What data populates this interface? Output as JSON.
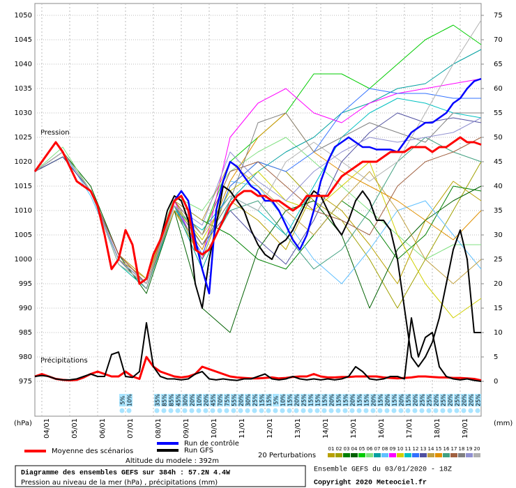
{
  "chart_data": {
    "type": "line",
    "title": "Diagramme des ensembles GEFS sur 384h : 57.2N 4.4W",
    "subtitle": "Pression au niveau de la mer (hPa) , précipitations (mm)",
    "run_label": "Ensemble GEFS du 03/01/2020 - 18Z",
    "copyright": "Copyright 2020 Meteociel.fr",
    "altitude": "Altitude du modele : 392m",
    "pressure_label": "Pression",
    "precip_label": "Précipitations",
    "ylabel": "(hPa)",
    "y2label": "(mm)",
    "perturbations_label": "20 Perturbations",
    "grid": true,
    "xlim": [
      0,
      384
    ],
    "xticks": [
      {
        "value": 6,
        "label": "04/01"
      },
      {
        "value": 30,
        "label": "05/01"
      },
      {
        "value": 54,
        "label": "06/01"
      },
      {
        "value": 78,
        "label": "07/01"
      },
      {
        "value": 102,
        "label": "08/01"
      },
      {
        "value": 126,
        "label": "09/01"
      },
      {
        "value": 150,
        "label": "10/01"
      },
      {
        "value": 174,
        "label": "11/01"
      },
      {
        "value": 198,
        "label": "12/01"
      },
      {
        "value": 222,
        "label": "13/01"
      },
      {
        "value": 246,
        "label": "14/01"
      },
      {
        "value": 270,
        "label": "15/01"
      },
      {
        "value": 294,
        "label": "16/01"
      },
      {
        "value": 318,
        "label": "17/01"
      },
      {
        "value": 342,
        "label": "18/01"
      },
      {
        "value": 366,
        "label": "19/01"
      }
    ],
    "ylim": [
      975,
      1050
    ],
    "yticks": [
      975,
      980,
      985,
      990,
      995,
      1000,
      1005,
      1010,
      1015,
      1020,
      1025,
      1030,
      1035,
      1040,
      1045,
      1050
    ],
    "y2lim": [
      0,
      75
    ],
    "y2ticks": [
      0,
      5,
      10,
      15,
      20,
      25,
      30,
      35,
      40,
      45,
      50,
      55,
      60,
      65,
      70,
      75
    ],
    "x": [
      0,
      6,
      12,
      18,
      24,
      30,
      36,
      42,
      48,
      54,
      60,
      66,
      72,
      78,
      84,
      90,
      96,
      102,
      108,
      114,
      120,
      126,
      132,
      138,
      144,
      150,
      156,
      162,
      168,
      174,
      180,
      186,
      192,
      198,
      204,
      210,
      216,
      222,
      228,
      234,
      240,
      246,
      252,
      258,
      264,
      270,
      276,
      282,
      288,
      294,
      300,
      306,
      312,
      318,
      324,
      330,
      336,
      342,
      348,
      354,
      360,
      366,
      372,
      378,
      384
    ],
    "series": [
      {
        "name": "Moyenne des scénarios",
        "color": "#ff0000",
        "values": [
          1018,
          1020,
          1022,
          1024,
          1022,
          1019,
          1016,
          1015,
          1014,
          1011,
          1005,
          998,
          1000,
          1006,
          1003,
          995,
          996,
          1001,
          1004,
          1008,
          1012,
          1013,
          1010,
          1002,
          1001,
          1002,
          1005,
          1008,
          1011,
          1013,
          1014,
          1014,
          1013,
          1013,
          1012,
          1012,
          1011,
          1010,
          1011,
          1013,
          1013,
          1013,
          1013,
          1015,
          1017,
          1018,
          1019,
          1020,
          1020,
          1020,
          1021,
          1022,
          1022,
          1022,
          1023,
          1023,
          1023,
          1022,
          1023,
          1023,
          1024,
          1025,
          1024,
          1024,
          1023.5
        ]
      },
      {
        "name": "Run de contrôle",
        "color": "#0000ff",
        "values": [
          1018,
          1020,
          1022,
          1024,
          1022,
          1019,
          1016,
          1015,
          1014,
          1011,
          1005,
          998,
          1000,
          1006,
          1003,
          995,
          996,
          1001,
          1004,
          1008,
          1012,
          1014,
          1012,
          1004,
          998,
          993,
          1010,
          1016,
          1020,
          1019,
          1017,
          1015,
          1014,
          1012,
          1012,
          1010,
          1007,
          1004,
          1002,
          1005,
          1010,
          1016,
          1020,
          1023,
          1024,
          1025,
          1024,
          1023,
          1023,
          1022.5,
          1022.5,
          1022.5,
          1022,
          1024,
          1026,
          1027,
          1028,
          1028,
          1029,
          1030,
          1032,
          1033,
          1035,
          1036.5,
          1037
        ]
      },
      {
        "name": "Run GFS",
        "color": "#000000",
        "values": [
          1018,
          1020,
          1022,
          1024,
          1022,
          1019,
          1016,
          1015,
          1014,
          1011,
          1005,
          998,
          1000,
          1006,
          1003,
          995,
          996,
          1001,
          1004,
          1010,
          1013,
          1012,
          1008,
          995,
          990,
          1000,
          1007,
          1015,
          1014,
          1012,
          1010,
          1006,
          1003,
          1001,
          1000,
          1003,
          1004,
          1006,
          1009,
          1012,
          1014,
          1013,
          1010,
          1007,
          1005,
          1008,
          1012,
          1014,
          1012,
          1008,
          1008,
          1006,
          1000,
          990,
          980,
          978,
          980,
          983,
          988,
          995,
          1002,
          1006,
          1000,
          985,
          985
        ]
      }
    ],
    "precip_series": [
      {
        "color": "#ff0000",
        "axis": "y2",
        "values": [
          1,
          1.5,
          1,
          0.5,
          0.3,
          0.2,
          0.3,
          0.8,
          1.5,
          2,
          1.5,
          1,
          1,
          2,
          1,
          0.5,
          5,
          3,
          2,
          1.5,
          1,
          0.8,
          1,
          1.5,
          3,
          2.5,
          2,
          1.5,
          1,
          0.8,
          0.7,
          0.6,
          0.6,
          0.7,
          0.8,
          0.6,
          0.7,
          0.9,
          1,
          1,
          1.5,
          1,
          0.8,
          0.8,
          0.9,
          0.9,
          1,
          1,
          1,
          1,
          0.8,
          0.7,
          0.6,
          0.7,
          0.8,
          1,
          1,
          0.9,
          0.8,
          0.8,
          0.7,
          0.7,
          0.6,
          0.5,
          0.2
        ]
      },
      {
        "color": "#000000",
        "axis": "y2",
        "values": [
          1,
          1.2,
          1,
          0.5,
          0.3,
          0.3,
          0.5,
          1,
          1.5,
          1,
          1,
          5.5,
          6,
          1,
          0.8,
          2,
          12,
          3,
          1,
          0.5,
          0.5,
          0.3,
          0.5,
          1.5,
          2,
          0.5,
          0.3,
          0.5,
          0.3,
          0.2,
          0.5,
          0.5,
          1,
          1.5,
          0.5,
          0.3,
          0.5,
          1,
          0.5,
          0.3,
          0.5,
          0.3,
          0.5,
          0.3,
          0.5,
          1,
          3,
          2,
          0.5,
          0.3,
          0.5,
          1,
          1,
          0.5,
          13,
          5,
          9,
          10,
          3,
          1,
          0.5,
          0.3,
          0.5,
          0.2,
          0
        ]
      }
    ],
    "perturbation_x": [
      0,
      24,
      48,
      72,
      96,
      120,
      144,
      168,
      192,
      216,
      240,
      264,
      288,
      312,
      336,
      360,
      384
    ],
    "perturbations": [
      {
        "name": "01",
        "color": "#b8a000",
        "values": [
          1018,
          1022,
          1014,
          1001,
          996,
          1012,
          1003,
          1012,
          1008,
          1002,
          1014,
          1010,
          1003,
          995,
          1008,
          1016,
          1012
        ]
      },
      {
        "name": "02",
        "color": "#a0a000",
        "values": [
          1018,
          1022,
          1014,
          999,
          994,
          1010,
          1000,
          1015,
          1020,
          1018,
          1012,
          1008,
          1000,
          990,
          1000,
          1010,
          1020
        ]
      },
      {
        "name": "03",
        "color": "#008000",
        "values": [
          1018,
          1021,
          1014,
          1000,
          995,
          1012,
          1008,
          1005,
          1000,
          998,
          1005,
          1012,
          1008,
          1000,
          1005,
          1015,
          1014
        ]
      },
      {
        "name": "04",
        "color": "#006000",
        "values": [
          1018,
          1022,
          1015,
          1001,
          993,
          1010,
          990,
          985,
          1002,
          1010,
          1012,
          1005,
          990,
          1002,
          1008,
          1012,
          1015
        ]
      },
      {
        "name": "05",
        "color": "#00cc00",
        "values": [
          1018,
          1022,
          1014,
          999,
          995,
          1011,
          1005,
          1020,
          1025,
          1030,
          1038,
          1038,
          1035,
          1040,
          1045,
          1048,
          1044
        ]
      },
      {
        "name": "06",
        "color": "#80e080",
        "values": [
          1018,
          1023,
          1014,
          1000,
          996,
          1013,
          1010,
          1018,
          1022,
          1025,
          1020,
          1015,
          1010,
          1005,
          1000,
          1003,
          1003
        ]
      },
      {
        "name": "07",
        "color": "#00a0a0",
        "values": [
          1018,
          1022,
          1014,
          1000,
          994,
          1011,
          998,
          1012,
          1018,
          1022,
          1025,
          1030,
          1032,
          1035,
          1036,
          1040,
          1043
        ]
      },
      {
        "name": "08",
        "color": "#60c0ff",
        "values": [
          1018,
          1022,
          1013,
          1000,
          995,
          1010,
          1002,
          1016,
          1015,
          1008,
          1000,
          995,
          1002,
          1010,
          1012,
          1005,
          998
        ]
      },
      {
        "name": "09",
        "color": "#ff00ff",
        "values": [
          1018,
          1022,
          1014,
          1001,
          995,
          1012,
          1000,
          1025,
          1032,
          1035,
          1030,
          1028,
          1032,
          1034,
          1035,
          1036,
          1037
        ]
      },
      {
        "name": "10",
        "color": "#d0d000",
        "values": [
          1018,
          1022,
          1014,
          1000,
          996,
          1011,
          1004,
          1014,
          1018,
          1012,
          1010,
          1015,
          1020,
          1005,
          995,
          988,
          992
        ]
      },
      {
        "name": "11",
        "color": "#00c0c0",
        "values": [
          1018,
          1022,
          1014,
          999,
          994,
          1010,
          1006,
          1013,
          1010,
          1005,
          1015,
          1025,
          1030,
          1033,
          1032,
          1030,
          1029
        ]
      },
      {
        "name": "12",
        "color": "#3070ff",
        "values": [
          1018,
          1022,
          1014,
          1000,
          995,
          1011,
          1001,
          1015,
          1020,
          1018,
          1022,
          1030,
          1035,
          1034,
          1034,
          1033,
          1033
        ]
      },
      {
        "name": "13",
        "color": "#5050a0",
        "values": [
          1018,
          1021,
          1014,
          1001,
          995,
          1011,
          1003,
          1010,
          1004,
          999,
          1008,
          1020,
          1026,
          1030,
          1028,
          1029,
          1028
        ]
      },
      {
        "name": "14",
        "color": "#c0a040",
        "values": [
          1018,
          1022,
          1014,
          1000,
          996,
          1012,
          1008,
          1020,
          1015,
          1010,
          1005,
          1012,
          1018,
          1010,
          1000,
          995,
          1000
        ]
      },
      {
        "name": "15",
        "color": "#e09000",
        "values": [
          1018,
          1022,
          1014,
          1000,
          995,
          1010,
          1002,
          1016,
          1025,
          1030,
          1022,
          1018,
          1015,
          1012,
          1008,
          1004,
          1010
        ]
      },
      {
        "name": "16",
        "color": "#40a080",
        "values": [
          1018,
          1022,
          1014,
          1000,
          995,
          1011,
          1000,
          1010,
          1012,
          1005,
          998,
          1002,
          1010,
          1020,
          1025,
          1022,
          1020
        ]
      },
      {
        "name": "17",
        "color": "#a06040",
        "values": [
          1018,
          1022,
          1014,
          1001,
          995,
          1012,
          1005,
          1018,
          1020,
          1015,
          1010,
          1008,
          1005,
          1015,
          1020,
          1022,
          1025
        ]
      },
      {
        "name": "18",
        "color": "#808080",
        "values": [
          1018,
          1022,
          1014,
          1000,
          994,
          1011,
          1003,
          1012,
          1028,
          1030,
          1022,
          1025,
          1028,
          1026,
          1024,
          1030,
          1030
        ]
      },
      {
        "name": "19",
        "color": "#9090d0",
        "values": [
          1018,
          1022,
          1014,
          1000,
          995,
          1011,
          1007,
          1022,
          1016,
          1012,
          1018,
          1022,
          1025,
          1024,
          1025,
          1026,
          1029
        ]
      },
      {
        "name": "20",
        "color": "#b0b0b0",
        "values": [
          1018,
          1022,
          1014,
          999,
          995,
          1011,
          1005,
          1013,
          1010,
          1020,
          1024,
          1020,
          1016,
          1020,
          1030,
          1040,
          1049
        ]
      }
    ],
    "probabilities": {
      "values": [
        null,
        null,
        null,
        null,
        null,
        null,
        null,
        null,
        null,
        null,
        null,
        null,
        5,
        10,
        null,
        null,
        null,
        35,
        85,
        85,
        45,
        30,
        20,
        10,
        20,
        45,
        70,
        75,
        55,
        20,
        30,
        25,
        15,
        15,
        5,
        10,
        15,
        20,
        25,
        15,
        15,
        15,
        20,
        15,
        15,
        20,
        15,
        15,
        20,
        15,
        20,
        15,
        20,
        15,
        20,
        25,
        25,
        20,
        25,
        20,
        25,
        20,
        20,
        25,
        null
      ],
      "value_labels": [
        null,
        null,
        null,
        null,
        null,
        null,
        null,
        null,
        null,
        null,
        null,
        null,
        "5%",
        "10%",
        null,
        null,
        null,
        "35%",
        "85%",
        "85%",
        "45%",
        "30%",
        "20%",
        "10%",
        "20%",
        "45%",
        "70%",
        "75%",
        "55%",
        "20%",
        "30%",
        "25%",
        "15%",
        "15%",
        "5%",
        "10%",
        "15%",
        "20%",
        "25%",
        "15%",
        "15%",
        "15%",
        "20%",
        "15%",
        "15%",
        "20%",
        "15%",
        "15%",
        "20%",
        "15%",
        "20%",
        "15%",
        "20%",
        "15%",
        "20%",
        "25%",
        "25%",
        "20%",
        "25%",
        "20%",
        "25%",
        "20%",
        "20%",
        "25%",
        null
      ]
    }
  }
}
